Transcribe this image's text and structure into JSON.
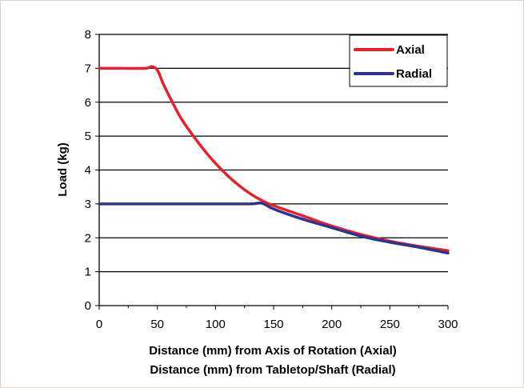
{
  "chart_data": {
    "type": "line",
    "title": "",
    "xlabel": [
      "Distance (mm) from Axis of Rotation (Axial)",
      "Distance (mm) from Tabletop/Shaft (Radial)"
    ],
    "ylabel": "Load (kg)",
    "xlim": [
      0,
      300
    ],
    "ylim": [
      0,
      8
    ],
    "xticks": [
      0,
      50,
      100,
      150,
      200,
      250,
      300
    ],
    "yticks": [
      0,
      1,
      2,
      3,
      4,
      5,
      6,
      7,
      8
    ],
    "grid": "horizontal",
    "legend": "top-right",
    "series": [
      {
        "name": "Axial",
        "color": "#e8202a",
        "x": [
          0,
          20,
          40,
          45,
          50,
          55,
          60,
          70,
          80,
          90,
          100,
          110,
          120,
          130,
          140,
          150,
          175,
          200,
          225,
          250,
          275,
          300
        ],
        "y": [
          7.0,
          7.0,
          7.0,
          7.05,
          6.95,
          6.55,
          6.2,
          5.55,
          5.05,
          4.6,
          4.2,
          3.85,
          3.55,
          3.3,
          3.1,
          2.95,
          2.65,
          2.35,
          2.1,
          1.9,
          1.75,
          1.62
        ]
      },
      {
        "name": "Radial",
        "color": "#2b3591",
        "x": [
          0,
          50,
          100,
          130,
          140,
          150,
          175,
          200,
          225,
          250,
          275,
          300
        ],
        "y": [
          3.0,
          3.0,
          3.0,
          3.0,
          3.02,
          2.85,
          2.55,
          2.3,
          2.05,
          1.87,
          1.72,
          1.55
        ]
      }
    ]
  }
}
